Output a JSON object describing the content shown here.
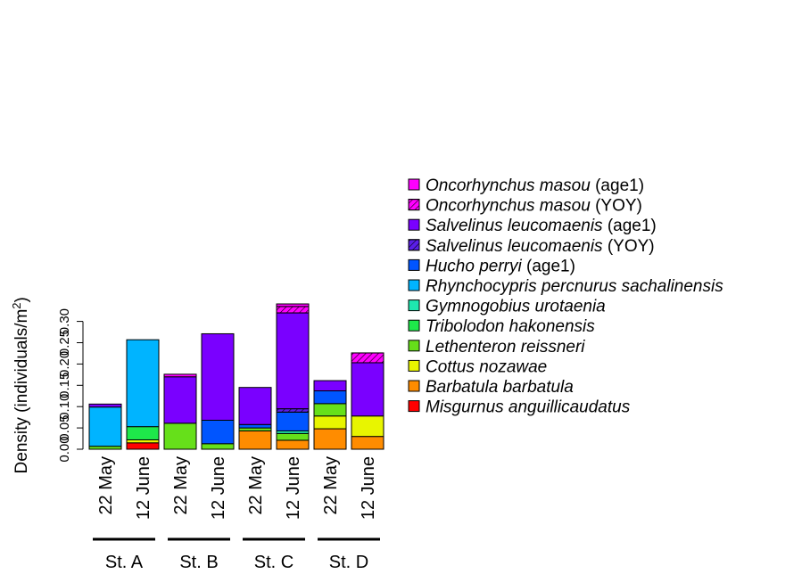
{
  "chart_data": {
    "type": "bar",
    "stacked": true,
    "ylabel_prefix": "Density (individuals/m",
    "ylabel_sup": "2",
    "ylabel_suffix": ")",
    "ylim": [
      0,
      0.345
    ],
    "yticks": [
      0.0,
      0.05,
      0.1,
      0.15,
      0.2,
      0.25,
      0.3
    ],
    "ytick_labels": [
      "0.00",
      "0.05",
      "0.10",
      "0.15",
      "0.20",
      "0.25",
      "0.30"
    ],
    "grid": false,
    "legend_position": "right",
    "categories": [
      "22 May",
      "12 June",
      "22 May",
      "12 June",
      "22 May",
      "12 June",
      "22 May",
      "12 June"
    ],
    "groups": [
      {
        "label": "St. A",
        "categories": [
          0,
          1
        ]
      },
      {
        "label": "St. B",
        "categories": [
          2,
          3
        ]
      },
      {
        "label": "St. C",
        "categories": [
          4,
          5
        ]
      },
      {
        "label": "St. D",
        "categories": [
          6,
          7
        ]
      }
    ],
    "series": [
      {
        "name_italic": "Misgurnus anguillicaudatus",
        "name_suffix": "",
        "color": "#ff0000",
        "hatched": false,
        "values": [
          0,
          0.015,
          0,
          0,
          0,
          0,
          0,
          0
        ]
      },
      {
        "name_italic": "Barbatula barbatula",
        "name_suffix": "",
        "color": "#ff8c00",
        "hatched": false,
        "values": [
          0,
          0,
          0,
          0,
          0.043,
          0.021,
          0.048,
          0.03
        ]
      },
      {
        "name_italic": "Cottus nozawae",
        "name_suffix": "",
        "color": "#e8f500",
        "hatched": false,
        "values": [
          0,
          0.007,
          0,
          0,
          0,
          0,
          0.03,
          0.048
        ]
      },
      {
        "name_italic": "Lethenteron reissneri",
        "name_suffix": "",
        "color": "#66e01a",
        "hatched": false,
        "values": [
          0.007,
          0,
          0.061,
          0.013,
          0.007,
          0.016,
          0.029,
          0
        ]
      },
      {
        "name_italic": "Tribolodon hakonensis",
        "name_suffix": "",
        "color": "#1ee84a",
        "hatched": false,
        "values": [
          0,
          0.031,
          0,
          0,
          0,
          0,
          0,
          0
        ]
      },
      {
        "name_italic": "Gymnogobius urotaenia",
        "name_suffix": "",
        "color": "#1ee8b0",
        "hatched": false,
        "values": [
          0,
          0,
          0,
          0,
          0,
          0.006,
          0,
          0
        ]
      },
      {
        "name_italic": "Rhynchocypris percnurus sachalinensis",
        "name_suffix": "",
        "color": "#00b4ff",
        "hatched": false,
        "values": [
          0.092,
          0.204,
          0,
          0,
          0,
          0,
          0,
          0
        ]
      },
      {
        "name_italic": "Hucho perryi",
        "name_suffix": " (age1)",
        "color": "#0055ff",
        "hatched": false,
        "values": [
          0,
          0,
          0,
          0.055,
          0.008,
          0.044,
          0.03,
          0
        ]
      },
      {
        "name_italic": "Salvelinus leucomaenis",
        "name_suffix": " (YOY)",
        "color": "#5a1ee8",
        "hatched": true,
        "values": [
          0,
          0,
          0,
          0,
          0,
          0.008,
          0,
          0
        ]
      },
      {
        "name_italic": "Salvelinus leucomaenis",
        "name_suffix": " (age1)",
        "color": "#7a00ff",
        "hatched": false,
        "values": [
          0.007,
          0,
          0.109,
          0.203,
          0.087,
          0.225,
          0.024,
          0.125
        ]
      },
      {
        "name_italic": "Oncorhynchus masou",
        "name_suffix": " (YOY)",
        "color": "#ff00ff",
        "hatched": true,
        "values": [
          0,
          0,
          0,
          0,
          0,
          0.015,
          0,
          0.023
        ]
      },
      {
        "name_italic": "Oncorhynchus masou",
        "name_suffix": " (age1)",
        "color": "#ff00ff",
        "hatched": false,
        "values": [
          0,
          0,
          0.006,
          0,
          0,
          0.006,
          0,
          0
        ]
      }
    ]
  }
}
